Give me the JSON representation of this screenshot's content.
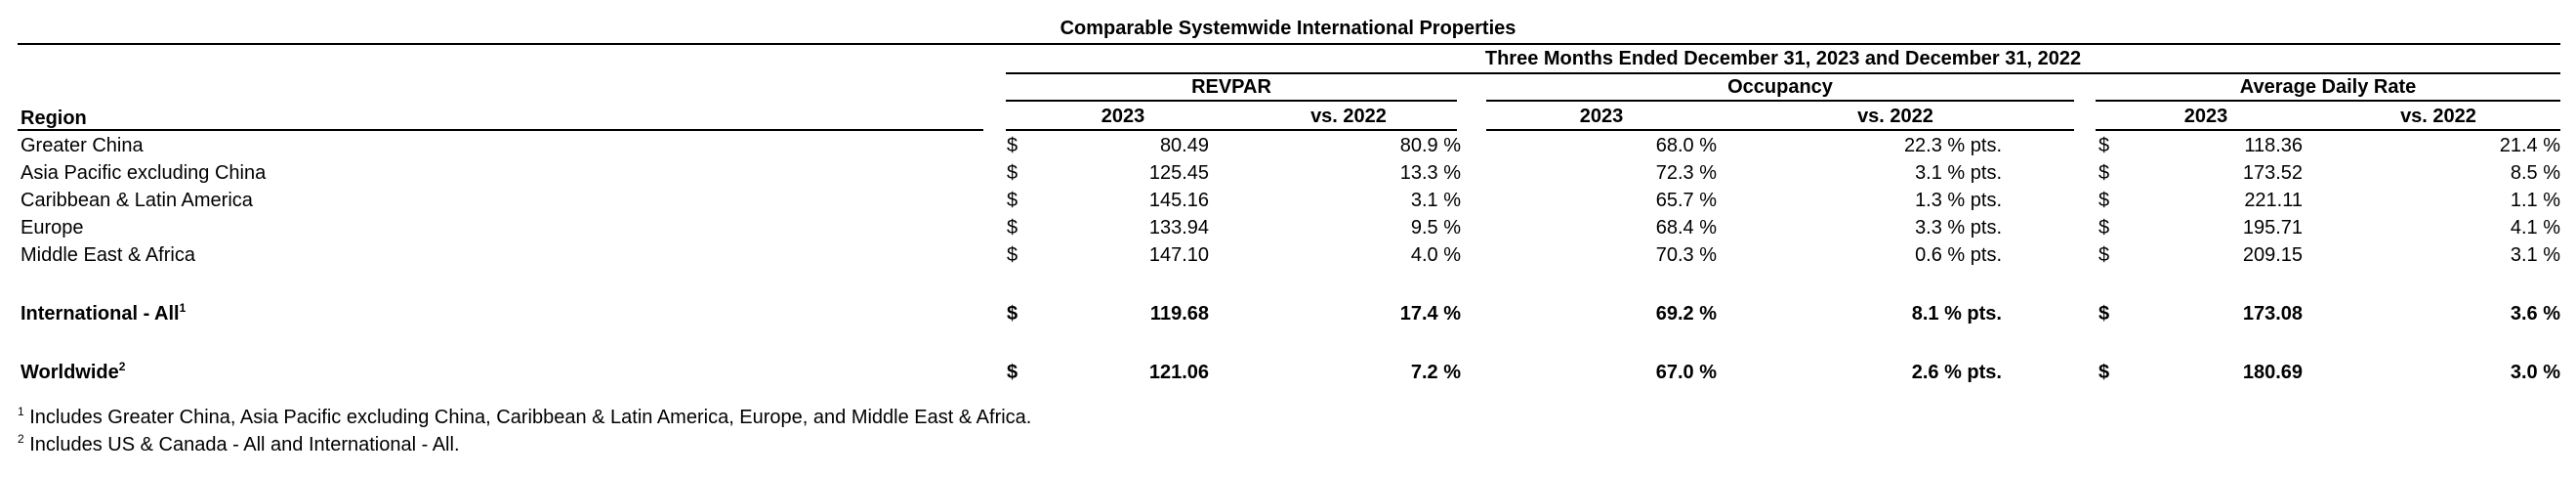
{
  "table": {
    "title": "Comparable Systemwide International Properties",
    "period": "Three Months Ended December 31, 2023 and December 31, 2022",
    "groups": [
      "REVPAR",
      "Occupancy",
      "Average Daily Rate"
    ],
    "region_header": "Region",
    "col_2023": "2023",
    "col_vs": "vs. 2022",
    "currency": "$",
    "rows": [
      {
        "region": "Greater China",
        "revpar": "80.49",
        "revpar_vs": "80.9 %",
        "occ": "68.0 %",
        "occ_vs": "22.3 % pts.",
        "adr": "118.36",
        "adr_vs": "21.4 %"
      },
      {
        "region": "Asia Pacific excluding China",
        "revpar": "125.45",
        "revpar_vs": "13.3 %",
        "occ": "72.3 %",
        "occ_vs": "3.1 % pts.",
        "adr": "173.52",
        "adr_vs": "8.5 %"
      },
      {
        "region": "Caribbean & Latin America",
        "revpar": "145.16",
        "revpar_vs": "3.1 %",
        "occ": "65.7 %",
        "occ_vs": "1.3 % pts.",
        "adr": "221.11",
        "adr_vs": "1.1 %"
      },
      {
        "region": "Europe",
        "revpar": "133.94",
        "revpar_vs": "9.5 %",
        "occ": "68.4 %",
        "occ_vs": "3.3 % pts.",
        "adr": "195.71",
        "adr_vs": "4.1 %"
      },
      {
        "region": "Middle East & Africa",
        "revpar": "147.10",
        "revpar_vs": "4.0 %",
        "occ": "70.3 %",
        "occ_vs": "0.6 % pts.",
        "adr": "209.15",
        "adr_vs": "3.1 %"
      }
    ],
    "totals": [
      {
        "region": "International - All",
        "sup": "1",
        "revpar": "119.68",
        "revpar_vs": "17.4 %",
        "occ": "69.2 %",
        "occ_vs": "8.1 % pts.",
        "adr": "173.08",
        "adr_vs": "3.6 %"
      },
      {
        "region": "Worldwide",
        "sup": "2",
        "revpar": "121.06",
        "revpar_vs": "7.2 %",
        "occ": "67.0 %",
        "occ_vs": "2.6 % pts.",
        "adr": "180.69",
        "adr_vs": "3.0 %"
      }
    ]
  },
  "footnotes": [
    {
      "mark": "1",
      "text": "Includes Greater China, Asia Pacific excluding China, Caribbean & Latin America, Europe, and Middle East & Africa."
    },
    {
      "mark": "2",
      "text": "Includes US & Canada - All and International - All."
    }
  ]
}
